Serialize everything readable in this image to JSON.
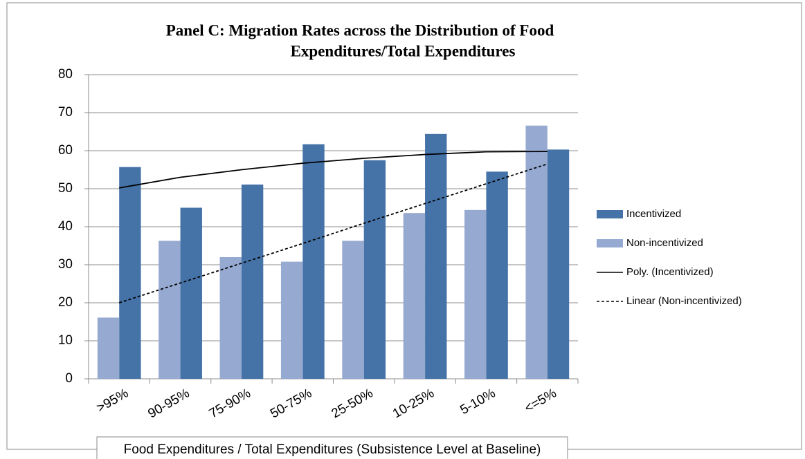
{
  "chart_data": {
    "type": "bar",
    "title": [
      "Panel C: Migration Rates across the Distribution of Food",
      "Expenditures/Total Expenditures"
    ],
    "x_label": "Food Expenditures / Total Expenditures (Subsistence Level  at Baseline)",
    "categories": [
      ">95%",
      "90-95%",
      "75-90%",
      "50-75%",
      "25-50%",
      "10-25%",
      "5-10%",
      "<=5%"
    ],
    "series": [
      {
        "name": "Incentivized",
        "type": "bar",
        "color": "#4572a7",
        "order": 1,
        "values": [
          55.7,
          45,
          51.1,
          61.7,
          57.5,
          64.4,
          54.5,
          60.3
        ]
      },
      {
        "name": "Non-incentivized",
        "type": "bar",
        "color": "#95a9d1",
        "order": 0,
        "values": [
          16.1,
          36.3,
          32,
          30.8,
          36.3,
          43.6,
          44.4,
          66.6
        ]
      },
      {
        "name": "Poly. (Incentivized)",
        "type": "line",
        "color": "#000000",
        "dash": "solid",
        "values": [
          50.2,
          53,
          55,
          56.7,
          58,
          59,
          59.7,
          59.8
        ]
      },
      {
        "name": "Linear (Non-incentivized)",
        "type": "line",
        "color": "#000000",
        "dash": "dashed",
        "values": [
          20,
          25.2,
          30.4,
          35.6,
          40.9,
          46.1,
          51.3,
          56.5
        ]
      }
    ],
    "ylim": [
      0,
      80
    ],
    "yticks": [
      0,
      10,
      20,
      30,
      40,
      50,
      60,
      70,
      80
    ],
    "grid": true,
    "legend": "right"
  }
}
